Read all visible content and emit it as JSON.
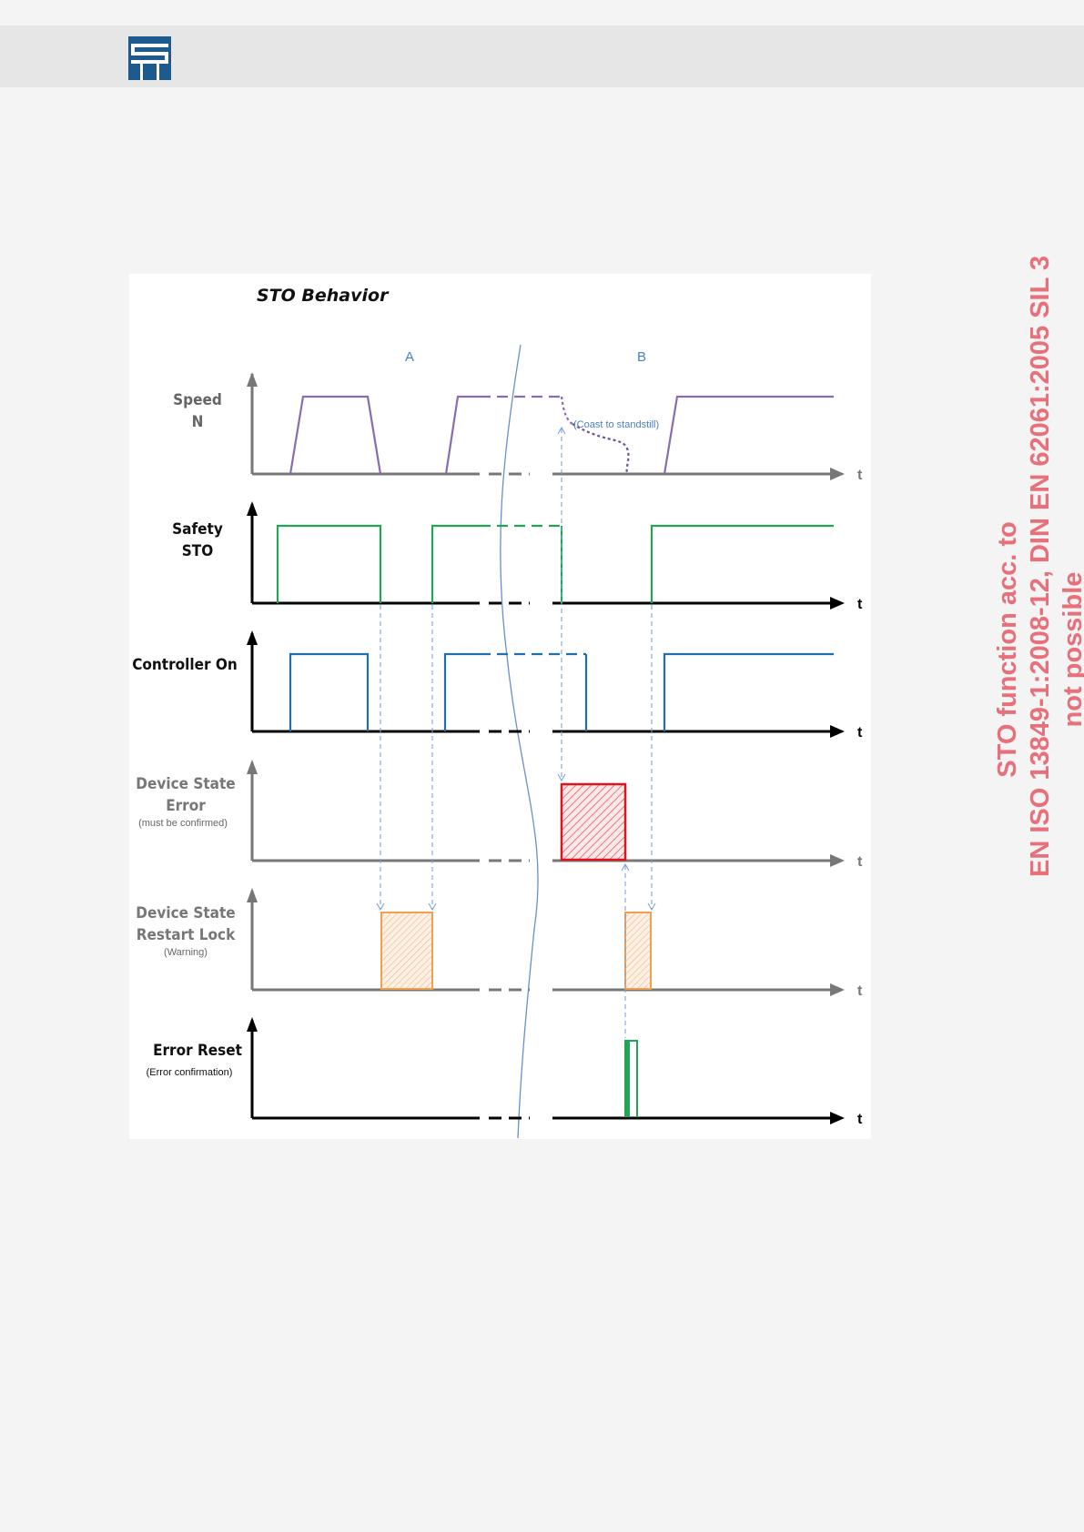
{
  "page": {
    "colors": {
      "background": "#f4f4f4",
      "header": "#e6e6e6",
      "logo": "#1d5a8e",
      "side_text": "#e8707b"
    }
  },
  "diagram": {
    "title": "STO Behavior",
    "section_a": "A",
    "section_b": "B",
    "annotation": "(Coast to standstill)",
    "axis_label": "t",
    "signals": [
      {
        "label_lines": [
          "Speed",
          "N"
        ],
        "sub": "",
        "color": "#8a6bb0"
      },
      {
        "label_lines": [
          "Safety",
          "STO"
        ],
        "sub": "",
        "color": "#22a455"
      },
      {
        "label_lines": [
          "Controller On"
        ],
        "sub": "",
        "color": "#1f6fb0"
      },
      {
        "label_lines": [
          "Device State",
          "Error"
        ],
        "sub": "(must be confirmed)",
        "color": "#e0141e"
      },
      {
        "label_lines": [
          "Device State",
          "Restart Lock"
        ],
        "sub": "(Warning)",
        "color": "#f0a050"
      },
      {
        "label_lines": [
          "Error Reset"
        ],
        "sub": "(Error confirmation)",
        "color": "#22a455"
      }
    ]
  },
  "side_note": {
    "line1": "STO function acc. to",
    "line2": "EN ISO 13849-1:2008-12, DIN EN 62061:2005 SIL 3",
    "line3": "not possible"
  }
}
